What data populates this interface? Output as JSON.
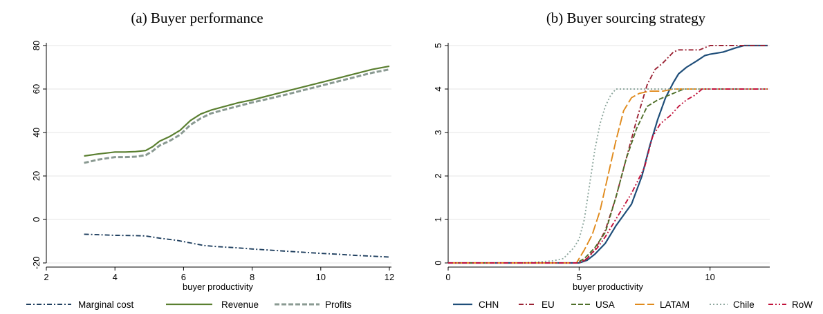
{
  "chart_data": [
    {
      "type": "line",
      "title": "(a) Buyer performance",
      "xlabel": "buyer productivity",
      "ylabel": "",
      "xlim": [
        2,
        12
      ],
      "ylim": [
        -20,
        80
      ],
      "xticks": [
        "2",
        "4",
        "6",
        "8",
        "10",
        "12"
      ],
      "yticks": [
        "-20",
        "0",
        "20",
        "40",
        "60",
        "80"
      ],
      "grid": true,
      "legend_position": "bottom",
      "series": [
        {
          "name": "Marginal cost",
          "color": "#1f3f5f",
          "dash": "dashdot",
          "x": [
            3.1,
            3.5,
            4,
            4.5,
            4.9,
            5.3,
            5.8,
            6.2,
            6.6,
            7,
            7.5,
            8,
            8.5,
            9,
            9.5,
            10,
            10.5,
            11,
            11.5,
            12
          ],
          "y": [
            -6.8,
            -7,
            -7.3,
            -7.4,
            -7.6,
            -8.6,
            -9.6,
            -10.8,
            -12,
            -12.5,
            -13,
            -13.6,
            -14.1,
            -14.6,
            -15.1,
            -15.6,
            -16,
            -16.5,
            -16.9,
            -17.3
          ]
        },
        {
          "name": "Revenue",
          "color": "#5a7f30",
          "dash": "solid",
          "x": [
            3.1,
            3.5,
            4,
            4.3,
            4.6,
            4.9,
            5.1,
            5.3,
            5.6,
            5.9,
            6.2,
            6.5,
            6.8,
            7.2,
            7.6,
            8,
            8.5,
            9,
            9.5,
            10,
            10.5,
            11,
            11.5,
            12
          ],
          "y": [
            29.2,
            30.1,
            31,
            31,
            31.2,
            31.7,
            33.5,
            36,
            38.2,
            41,
            45.5,
            48.5,
            50.3,
            52,
            53.7,
            55,
            57,
            59,
            61,
            63,
            65,
            67,
            69,
            70.5
          ]
        },
        {
          "name": "Profits",
          "color": "#8a9a92",
          "dash": "dashed",
          "x": [
            3.1,
            3.5,
            4,
            4.3,
            4.6,
            4.9,
            5.1,
            5.3,
            5.6,
            5.9,
            6.2,
            6.5,
            6.8,
            7.2,
            7.6,
            8,
            8.5,
            9,
            9.5,
            10,
            10.5,
            11,
            11.5,
            12
          ],
          "y": [
            26,
            27.5,
            28.7,
            28.7,
            28.9,
            29.6,
            31.5,
            34,
            36.2,
            39,
            43.5,
            46.5,
            48.8,
            50.5,
            52.2,
            53.8,
            55.6,
            57.5,
            59.5,
            61.5,
            63.5,
            65.5,
            67.5,
            69
          ]
        }
      ]
    },
    {
      "type": "line",
      "title": "(b) Buyer sourcing strategy",
      "xlabel": "buyer productivity",
      "ylabel": "",
      "xlim": [
        0,
        12.2
      ],
      "ylim": [
        0,
        5
      ],
      "xticks": [
        "0",
        "5",
        "10"
      ],
      "yticks": [
        "0",
        "1",
        "2",
        "3",
        "4",
        "5"
      ],
      "grid": true,
      "legend_position": "bottom",
      "series": [
        {
          "name": "CHN",
          "color": "#1f4e79",
          "dash": "solid",
          "x": [
            0,
            5,
            5.3,
            5.6,
            6,
            6.4,
            7,
            7.4,
            7.7,
            8,
            8.3,
            8.6,
            8.8,
            9.1,
            9.5,
            9.8,
            10,
            10.5,
            11,
            11.3,
            11.6,
            12.2
          ],
          "y": [
            0,
            0,
            0.06,
            0.2,
            0.45,
            0.85,
            1.35,
            2,
            2.7,
            3.3,
            3.8,
            4.15,
            4.35,
            4.5,
            4.65,
            4.77,
            4.8,
            4.85,
            4.95,
            5,
            5,
            5
          ]
        },
        {
          "name": "EU",
          "color": "#9b2335",
          "dash": "dashdot",
          "x": [
            0,
            4.9,
            5.2,
            5.6,
            6,
            6.4,
            6.8,
            7.2,
            7.6,
            7.9,
            8.2,
            8.6,
            8.8,
            9.2,
            9.6,
            10,
            10.5,
            11,
            12.2
          ],
          "y": [
            0,
            0,
            0.05,
            0.3,
            0.75,
            1.5,
            2.4,
            3.3,
            4.1,
            4.45,
            4.6,
            4.85,
            4.9,
            4.9,
            4.9,
            5,
            5,
            5,
            5
          ]
        },
        {
          "name": "USA",
          "color": "#4f6f2a",
          "dash": "dashed",
          "x": [
            0,
            4.9,
            5.2,
            5.6,
            6,
            6.4,
            6.8,
            7.2,
            7.6,
            8,
            8.4,
            8.8,
            9,
            12.2
          ],
          "y": [
            0,
            0,
            0.1,
            0.35,
            0.7,
            1.5,
            2.4,
            3.1,
            3.6,
            3.75,
            3.85,
            3.95,
            4,
            4
          ]
        },
        {
          "name": "LATAM",
          "color": "#e08a1c",
          "dash": "longdash",
          "x": [
            0,
            4.9,
            5.2,
            5.5,
            5.8,
            6.1,
            6.4,
            6.7,
            7,
            7.3,
            7.7,
            8.2,
            8.6,
            12.2
          ],
          "y": [
            0,
            0,
            0.3,
            0.65,
            1.2,
            2,
            2.8,
            3.5,
            3.8,
            3.9,
            3.95,
            3.95,
            4,
            4
          ]
        },
        {
          "name": "Chile",
          "color": "#8fa89f",
          "dash": "dotted",
          "x": [
            0,
            2.8,
            3.4,
            4,
            4.4,
            4.8,
            5,
            5.2,
            5.4,
            5.6,
            5.8,
            6,
            6.2,
            6.4,
            6.6,
            12.2
          ],
          "y": [
            0,
            0,
            0.02,
            0.05,
            0.1,
            0.35,
            0.55,
            1,
            1.8,
            2.6,
            3.2,
            3.6,
            3.85,
            4,
            4,
            4
          ]
        },
        {
          "name": "RoW",
          "color": "#c1113a",
          "dash": "dashdotdot",
          "x": [
            0,
            5,
            5.3,
            5.7,
            6,
            6.5,
            7,
            7.5,
            7.8,
            8.1,
            8.5,
            8.8,
            9.1,
            9.4,
            9.7,
            10,
            12.2
          ],
          "y": [
            0,
            0,
            0.1,
            0.35,
            0.6,
            1.1,
            1.6,
            2.2,
            2.9,
            3.2,
            3.4,
            3.6,
            3.75,
            3.85,
            4,
            4,
            4
          ]
        }
      ]
    }
  ]
}
